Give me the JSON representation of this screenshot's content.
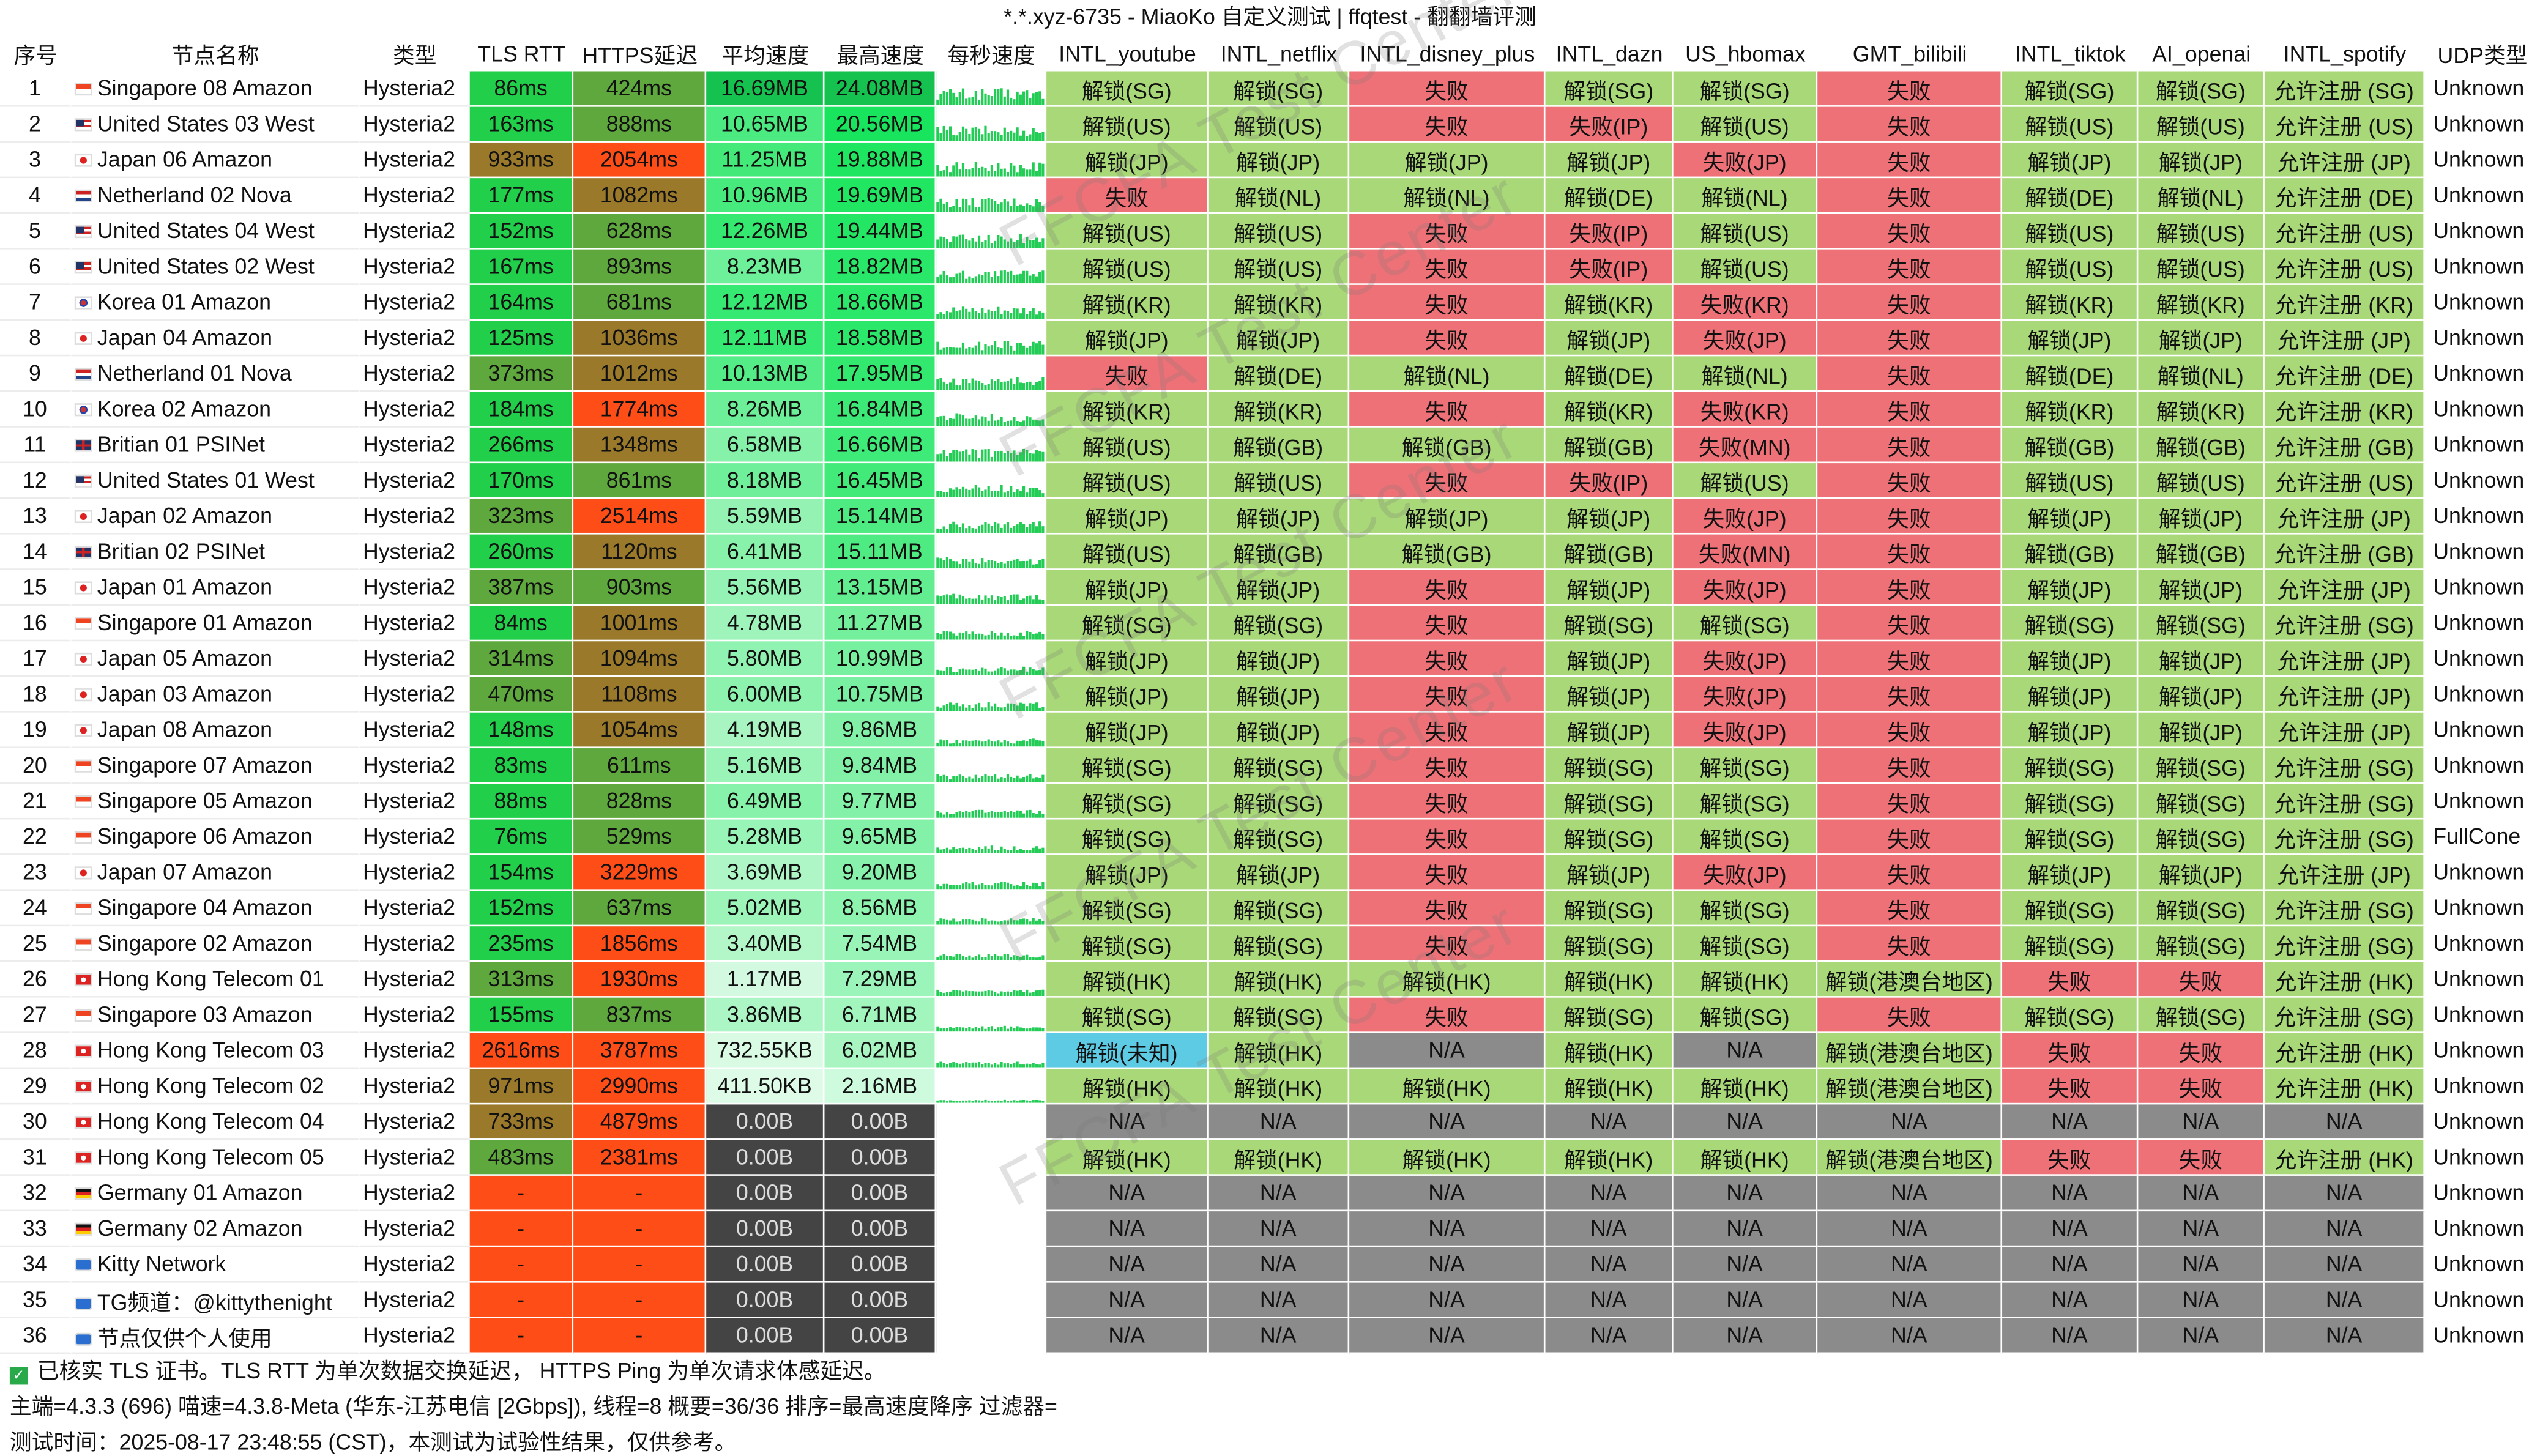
{
  "window": {
    "title": "*.*.xyz-6735 - MiaoKo 自定义测试 | ffqtest - 翻翻墙评测",
    "watermark": "FFCFA Test Center"
  },
  "colors": {
    "unlock": "#a8d878",
    "fail": "#ee7178",
    "na": "#8b8b8b",
    "unknown_region": "#5ecbe5",
    "rtt_good": "#22cf4b",
    "rtt_mid": "#5fa83e",
    "rtt_warn": "#9a7a2a",
    "rtt_bad": "#ff4d18",
    "speed_hi": "#10d060",
    "speed_zero": "#444444"
  },
  "columns": [
    "序号",
    "节点名称",
    "类型",
    "TLS RTT",
    "HTTPS延迟",
    "平均速度",
    "最高速度",
    "每秒速度",
    "INTL_youtube",
    "INTL_netflix",
    "INTL_disney_plus",
    "INTL_dazn",
    "US_hbomax",
    "GMT_bilibili",
    "INTL_tiktok",
    "AI_openai",
    "INTL_spotify",
    "UDP类型"
  ],
  "rows": [
    {
      "idx": "1",
      "flag": "SG",
      "name": "Singapore 08 Amazon",
      "type": "Hysteria2",
      "tls": "86ms",
      "https": "424ms",
      "avg": "16.69MB",
      "max": "24.08MB",
      "yt": "解锁(SG)",
      "nf": "解锁(SG)",
      "dp": "失败",
      "dazn": "解锁(SG)",
      "hbo": "解锁(SG)",
      "bili": "失败",
      "tt": "解锁(SG)",
      "ai": "解锁(SG)",
      "sp": "允许注册 (SG)",
      "udp": "Unknown"
    },
    {
      "idx": "2",
      "flag": "US",
      "name": "United States 03 West",
      "type": "Hysteria2",
      "tls": "163ms",
      "https": "888ms",
      "avg": "10.65MB",
      "max": "20.56MB",
      "yt": "解锁(US)",
      "nf": "解锁(US)",
      "dp": "失败",
      "dazn": "失败(IP)",
      "hbo": "解锁(US)",
      "bili": "失败",
      "tt": "解锁(US)",
      "ai": "解锁(US)",
      "sp": "允许注册 (US)",
      "udp": "Unknown"
    },
    {
      "idx": "3",
      "flag": "JP",
      "name": "Japan 06 Amazon",
      "type": "Hysteria2",
      "tls": "933ms",
      "https": "2054ms",
      "avg": "11.25MB",
      "max": "19.88MB",
      "yt": "解锁(JP)",
      "nf": "解锁(JP)",
      "dp": "解锁(JP)",
      "dazn": "解锁(JP)",
      "hbo": "失败(JP)",
      "bili": "失败",
      "tt": "解锁(JP)",
      "ai": "解锁(JP)",
      "sp": "允许注册 (JP)",
      "udp": "Unknown"
    },
    {
      "idx": "4",
      "flag": "NL",
      "name": "Netherland 02 Nova",
      "type": "Hysteria2",
      "tls": "177ms",
      "https": "1082ms",
      "avg": "10.96MB",
      "max": "19.69MB",
      "yt": "失败",
      "nf": "解锁(NL)",
      "dp": "解锁(NL)",
      "dazn": "解锁(DE)",
      "hbo": "解锁(NL)",
      "bili": "失败",
      "tt": "解锁(DE)",
      "ai": "解锁(NL)",
      "sp": "允许注册 (DE)",
      "udp": "Unknown"
    },
    {
      "idx": "5",
      "flag": "US",
      "name": "United States 04 West",
      "type": "Hysteria2",
      "tls": "152ms",
      "https": "628ms",
      "avg": "12.26MB",
      "max": "19.44MB",
      "yt": "解锁(US)",
      "nf": "解锁(US)",
      "dp": "失败",
      "dazn": "失败(IP)",
      "hbo": "解锁(US)",
      "bili": "失败",
      "tt": "解锁(US)",
      "ai": "解锁(US)",
      "sp": "允许注册 (US)",
      "udp": "Unknown"
    },
    {
      "idx": "6",
      "flag": "US",
      "name": "United States 02 West",
      "type": "Hysteria2",
      "tls": "167ms",
      "https": "893ms",
      "avg": "8.23MB",
      "max": "18.82MB",
      "yt": "解锁(US)",
      "nf": "解锁(US)",
      "dp": "失败",
      "dazn": "失败(IP)",
      "hbo": "解锁(US)",
      "bili": "失败",
      "tt": "解锁(US)",
      "ai": "解锁(US)",
      "sp": "允许注册 (US)",
      "udp": "Unknown"
    },
    {
      "idx": "7",
      "flag": "KR",
      "name": "Korea 01 Amazon",
      "type": "Hysteria2",
      "tls": "164ms",
      "https": "681ms",
      "avg": "12.12MB",
      "max": "18.66MB",
      "yt": "解锁(KR)",
      "nf": "解锁(KR)",
      "dp": "失败",
      "dazn": "解锁(KR)",
      "hbo": "失败(KR)",
      "bili": "失败",
      "tt": "解锁(KR)",
      "ai": "解锁(KR)",
      "sp": "允许注册 (KR)",
      "udp": "Unknown"
    },
    {
      "idx": "8",
      "flag": "JP",
      "name": "Japan 04 Amazon",
      "type": "Hysteria2",
      "tls": "125ms",
      "https": "1036ms",
      "avg": "12.11MB",
      "max": "18.58MB",
      "yt": "解锁(JP)",
      "nf": "解锁(JP)",
      "dp": "失败",
      "dazn": "解锁(JP)",
      "hbo": "失败(JP)",
      "bili": "失败",
      "tt": "解锁(JP)",
      "ai": "解锁(JP)",
      "sp": "允许注册 (JP)",
      "udp": "Unknown"
    },
    {
      "idx": "9",
      "flag": "NL",
      "name": "Netherland 01 Nova",
      "type": "Hysteria2",
      "tls": "373ms",
      "https": "1012ms",
      "avg": "10.13MB",
      "max": "17.95MB",
      "yt": "失败",
      "nf": "解锁(DE)",
      "dp": "解锁(NL)",
      "dazn": "解锁(DE)",
      "hbo": "解锁(NL)",
      "bili": "失败",
      "tt": "解锁(DE)",
      "ai": "解锁(NL)",
      "sp": "允许注册 (DE)",
      "udp": "Unknown"
    },
    {
      "idx": "10",
      "flag": "KR",
      "name": "Korea 02 Amazon",
      "type": "Hysteria2",
      "tls": "184ms",
      "https": "1774ms",
      "avg": "8.26MB",
      "max": "16.84MB",
      "yt": "解锁(KR)",
      "nf": "解锁(KR)",
      "dp": "失败",
      "dazn": "解锁(KR)",
      "hbo": "失败(KR)",
      "bili": "失败",
      "tt": "解锁(KR)",
      "ai": "解锁(KR)",
      "sp": "允许注册 (KR)",
      "udp": "Unknown"
    },
    {
      "idx": "11",
      "flag": "GB",
      "name": "Britian 01 PSINet",
      "type": "Hysteria2",
      "tls": "266ms",
      "https": "1348ms",
      "avg": "6.58MB",
      "max": "16.66MB",
      "yt": "解锁(US)",
      "nf": "解锁(GB)",
      "dp": "解锁(GB)",
      "dazn": "解锁(GB)",
      "hbo": "失败(MN)",
      "bili": "失败",
      "tt": "解锁(GB)",
      "ai": "解锁(GB)",
      "sp": "允许注册 (GB)",
      "udp": "Unknown"
    },
    {
      "idx": "12",
      "flag": "US",
      "name": "United States 01 West",
      "type": "Hysteria2",
      "tls": "170ms",
      "https": "861ms",
      "avg": "8.18MB",
      "max": "16.45MB",
      "yt": "解锁(US)",
      "nf": "解锁(US)",
      "dp": "失败",
      "dazn": "失败(IP)",
      "hbo": "解锁(US)",
      "bili": "失败",
      "tt": "解锁(US)",
      "ai": "解锁(US)",
      "sp": "允许注册 (US)",
      "udp": "Unknown"
    },
    {
      "idx": "13",
      "flag": "JP",
      "name": "Japan 02 Amazon",
      "type": "Hysteria2",
      "tls": "323ms",
      "https": "2514ms",
      "avg": "5.59MB",
      "max": "15.14MB",
      "yt": "解锁(JP)",
      "nf": "解锁(JP)",
      "dp": "解锁(JP)",
      "dazn": "解锁(JP)",
      "hbo": "失败(JP)",
      "bili": "失败",
      "tt": "解锁(JP)",
      "ai": "解锁(JP)",
      "sp": "允许注册 (JP)",
      "udp": "Unknown"
    },
    {
      "idx": "14",
      "flag": "GB",
      "name": "Britian 02 PSINet",
      "type": "Hysteria2",
      "tls": "260ms",
      "https": "1120ms",
      "avg": "6.41MB",
      "max": "15.11MB",
      "yt": "解锁(US)",
      "nf": "解锁(GB)",
      "dp": "解锁(GB)",
      "dazn": "解锁(GB)",
      "hbo": "失败(MN)",
      "bili": "失败",
      "tt": "解锁(GB)",
      "ai": "解锁(GB)",
      "sp": "允许注册 (GB)",
      "udp": "Unknown"
    },
    {
      "idx": "15",
      "flag": "JP",
      "name": "Japan 01 Amazon",
      "type": "Hysteria2",
      "tls": "387ms",
      "https": "903ms",
      "avg": "5.56MB",
      "max": "13.15MB",
      "yt": "解锁(JP)",
      "nf": "解锁(JP)",
      "dp": "失败",
      "dazn": "解锁(JP)",
      "hbo": "失败(JP)",
      "bili": "失败",
      "tt": "解锁(JP)",
      "ai": "解锁(JP)",
      "sp": "允许注册 (JP)",
      "udp": "Unknown"
    },
    {
      "idx": "16",
      "flag": "SG",
      "name": "Singapore 01 Amazon",
      "type": "Hysteria2",
      "tls": "84ms",
      "https": "1001ms",
      "avg": "4.78MB",
      "max": "11.27MB",
      "yt": "解锁(SG)",
      "nf": "解锁(SG)",
      "dp": "失败",
      "dazn": "解锁(SG)",
      "hbo": "解锁(SG)",
      "bili": "失败",
      "tt": "解锁(SG)",
      "ai": "解锁(SG)",
      "sp": "允许注册 (SG)",
      "udp": "Unknown"
    },
    {
      "idx": "17",
      "flag": "JP",
      "name": "Japan 05 Amazon",
      "type": "Hysteria2",
      "tls": "314ms",
      "https": "1094ms",
      "avg": "5.80MB",
      "max": "10.99MB",
      "yt": "解锁(JP)",
      "nf": "解锁(JP)",
      "dp": "失败",
      "dazn": "解锁(JP)",
      "hbo": "失败(JP)",
      "bili": "失败",
      "tt": "解锁(JP)",
      "ai": "解锁(JP)",
      "sp": "允许注册 (JP)",
      "udp": "Unknown"
    },
    {
      "idx": "18",
      "flag": "JP",
      "name": "Japan 03 Amazon",
      "type": "Hysteria2",
      "tls": "470ms",
      "https": "1108ms",
      "avg": "6.00MB",
      "max": "10.75MB",
      "yt": "解锁(JP)",
      "nf": "解锁(JP)",
      "dp": "失败",
      "dazn": "解锁(JP)",
      "hbo": "失败(JP)",
      "bili": "失败",
      "tt": "解锁(JP)",
      "ai": "解锁(JP)",
      "sp": "允许注册 (JP)",
      "udp": "Unknown"
    },
    {
      "idx": "19",
      "flag": "JP",
      "name": "Japan 08 Amazon",
      "type": "Hysteria2",
      "tls": "148ms",
      "https": "1054ms",
      "avg": "4.19MB",
      "max": "9.86MB",
      "yt": "解锁(JP)",
      "nf": "解锁(JP)",
      "dp": "失败",
      "dazn": "解锁(JP)",
      "hbo": "失败(JP)",
      "bili": "失败",
      "tt": "解锁(JP)",
      "ai": "解锁(JP)",
      "sp": "允许注册 (JP)",
      "udp": "Unknown"
    },
    {
      "idx": "20",
      "flag": "SG",
      "name": "Singapore 07 Amazon",
      "type": "Hysteria2",
      "tls": "83ms",
      "https": "611ms",
      "avg": "5.16MB",
      "max": "9.84MB",
      "yt": "解锁(SG)",
      "nf": "解锁(SG)",
      "dp": "失败",
      "dazn": "解锁(SG)",
      "hbo": "解锁(SG)",
      "bili": "失败",
      "tt": "解锁(SG)",
      "ai": "解锁(SG)",
      "sp": "允许注册 (SG)",
      "udp": "Unknown"
    },
    {
      "idx": "21",
      "flag": "SG",
      "name": "Singapore 05 Amazon",
      "type": "Hysteria2",
      "tls": "88ms",
      "https": "828ms",
      "avg": "6.49MB",
      "max": "9.77MB",
      "yt": "解锁(SG)",
      "nf": "解锁(SG)",
      "dp": "失败",
      "dazn": "解锁(SG)",
      "hbo": "解锁(SG)",
      "bili": "失败",
      "tt": "解锁(SG)",
      "ai": "解锁(SG)",
      "sp": "允许注册 (SG)",
      "udp": "Unknown"
    },
    {
      "idx": "22",
      "flag": "SG",
      "name": "Singapore 06 Amazon",
      "type": "Hysteria2",
      "tls": "76ms",
      "https": "529ms",
      "avg": "5.28MB",
      "max": "9.65MB",
      "yt": "解锁(SG)",
      "nf": "解锁(SG)",
      "dp": "失败",
      "dazn": "解锁(SG)",
      "hbo": "解锁(SG)",
      "bili": "失败",
      "tt": "解锁(SG)",
      "ai": "解锁(SG)",
      "sp": "允许注册 (SG)",
      "udp": "FullCone"
    },
    {
      "idx": "23",
      "flag": "JP",
      "name": "Japan 07 Amazon",
      "type": "Hysteria2",
      "tls": "154ms",
      "https": "3229ms",
      "avg": "3.69MB",
      "max": "9.20MB",
      "yt": "解锁(JP)",
      "nf": "解锁(JP)",
      "dp": "失败",
      "dazn": "解锁(JP)",
      "hbo": "失败(JP)",
      "bili": "失败",
      "tt": "解锁(JP)",
      "ai": "解锁(JP)",
      "sp": "允许注册 (JP)",
      "udp": "Unknown"
    },
    {
      "idx": "24",
      "flag": "SG",
      "name": "Singapore 04 Amazon",
      "type": "Hysteria2",
      "tls": "152ms",
      "https": "637ms",
      "avg": "5.02MB",
      "max": "8.56MB",
      "yt": "解锁(SG)",
      "nf": "解锁(SG)",
      "dp": "失败",
      "dazn": "解锁(SG)",
      "hbo": "解锁(SG)",
      "bili": "失败",
      "tt": "解锁(SG)",
      "ai": "解锁(SG)",
      "sp": "允许注册 (SG)",
      "udp": "Unknown"
    },
    {
      "idx": "25",
      "flag": "SG",
      "name": "Singapore 02 Amazon",
      "type": "Hysteria2",
      "tls": "235ms",
      "https": "1856ms",
      "avg": "3.40MB",
      "max": "7.54MB",
      "yt": "解锁(SG)",
      "nf": "解锁(SG)",
      "dp": "失败",
      "dazn": "解锁(SG)",
      "hbo": "解锁(SG)",
      "bili": "失败",
      "tt": "解锁(SG)",
      "ai": "解锁(SG)",
      "sp": "允许注册 (SG)",
      "udp": "Unknown"
    },
    {
      "idx": "26",
      "flag": "HK",
      "name": "Hong Kong Telecom 01",
      "type": "Hysteria2",
      "tls": "313ms",
      "https": "1930ms",
      "avg": "1.17MB",
      "max": "7.29MB",
      "yt": "解锁(HK)",
      "nf": "解锁(HK)",
      "dp": "解锁(HK)",
      "dazn": "解锁(HK)",
      "hbo": "解锁(HK)",
      "bili": "解锁(港澳台地区)",
      "tt": "失败",
      "ai": "失败",
      "sp": "允许注册 (HK)",
      "udp": "Unknown"
    },
    {
      "idx": "27",
      "flag": "SG",
      "name": "Singapore 03 Amazon",
      "type": "Hysteria2",
      "tls": "155ms",
      "https": "837ms",
      "avg": "3.86MB",
      "max": "6.71MB",
      "yt": "解锁(SG)",
      "nf": "解锁(SG)",
      "dp": "失败",
      "dazn": "解锁(SG)",
      "hbo": "解锁(SG)",
      "bili": "失败",
      "tt": "解锁(SG)",
      "ai": "解锁(SG)",
      "sp": "允许注册 (SG)",
      "udp": "Unknown"
    },
    {
      "idx": "28",
      "flag": "HK",
      "name": "Hong Kong Telecom 03",
      "type": "Hysteria2",
      "tls": "2616ms",
      "https": "3787ms",
      "avg": "732.55KB",
      "max": "6.02MB",
      "yt": "解锁(未知)",
      "nf": "解锁(HK)",
      "dp": "N/A",
      "dazn": "解锁(HK)",
      "hbo": "N/A",
      "bili": "解锁(港澳台地区)",
      "tt": "失败",
      "ai": "失败",
      "sp": "允许注册 (HK)",
      "udp": "Unknown"
    },
    {
      "idx": "29",
      "flag": "HK",
      "name": "Hong Kong Telecom 02",
      "type": "Hysteria2",
      "tls": "971ms",
      "https": "2990ms",
      "avg": "411.50KB",
      "max": "2.16MB",
      "yt": "解锁(HK)",
      "nf": "解锁(HK)",
      "dp": "解锁(HK)",
      "dazn": "解锁(HK)",
      "hbo": "解锁(HK)",
      "bili": "解锁(港澳台地区)",
      "tt": "失败",
      "ai": "失败",
      "sp": "允许注册 (HK)",
      "udp": "Unknown"
    },
    {
      "idx": "30",
      "flag": "HK",
      "name": "Hong Kong Telecom 04",
      "type": "Hysteria2",
      "tls": "733ms",
      "https": "4879ms",
      "avg": "0.00B",
      "max": "0.00B",
      "yt": "N/A",
      "nf": "N/A",
      "dp": "N/A",
      "dazn": "N/A",
      "hbo": "N/A",
      "bili": "N/A",
      "tt": "N/A",
      "ai": "N/A",
      "sp": "N/A",
      "udp": "Unknown"
    },
    {
      "idx": "31",
      "flag": "HK",
      "name": "Hong Kong Telecom 05",
      "type": "Hysteria2",
      "tls": "483ms",
      "https": "2381ms",
      "avg": "0.00B",
      "max": "0.00B",
      "yt": "解锁(HK)",
      "nf": "解锁(HK)",
      "dp": "解锁(HK)",
      "dazn": "解锁(HK)",
      "hbo": "解锁(HK)",
      "bili": "解锁(港澳台地区)",
      "tt": "失败",
      "ai": "失败",
      "sp": "允许注册 (HK)",
      "udp": "Unknown"
    },
    {
      "idx": "32",
      "flag": "DE",
      "name": "Germany 01 Amazon",
      "type": "Hysteria2",
      "tls": "-",
      "https": "-",
      "avg": "0.00B",
      "max": "0.00B",
      "yt": "N/A",
      "nf": "N/A",
      "dp": "N/A",
      "dazn": "N/A",
      "hbo": "N/A",
      "bili": "N/A",
      "tt": "N/A",
      "ai": "N/A",
      "sp": "N/A",
      "udp": "Unknown"
    },
    {
      "idx": "33",
      "flag": "DE",
      "name": "Germany 02 Amazon",
      "type": "Hysteria2",
      "tls": "-",
      "https": "-",
      "avg": "0.00B",
      "max": "0.00B",
      "yt": "N/A",
      "nf": "N/A",
      "dp": "N/A",
      "dazn": "N/A",
      "hbo": "N/A",
      "bili": "N/A",
      "tt": "N/A",
      "ai": "N/A",
      "sp": "N/A",
      "udp": "Unknown"
    },
    {
      "idx": "34",
      "flag": "ICON",
      "name": "Kitty Network",
      "type": "Hysteria2",
      "tls": "-",
      "https": "-",
      "avg": "0.00B",
      "max": "0.00B",
      "yt": "N/A",
      "nf": "N/A",
      "dp": "N/A",
      "dazn": "N/A",
      "hbo": "N/A",
      "bili": "N/A",
      "tt": "N/A",
      "ai": "N/A",
      "sp": "N/A",
      "udp": "Unknown"
    },
    {
      "idx": "35",
      "flag": "ICON",
      "name": "TG频道：@kittythenight",
      "type": "Hysteria2",
      "tls": "-",
      "https": "-",
      "avg": "0.00B",
      "max": "0.00B",
      "yt": "N/A",
      "nf": "N/A",
      "dp": "N/A",
      "dazn": "N/A",
      "hbo": "N/A",
      "bili": "N/A",
      "tt": "N/A",
      "ai": "N/A",
      "sp": "N/A",
      "udp": "Unknown"
    },
    {
      "idx": "36",
      "flag": "ICON",
      "name": "节点仅供个人使用",
      "type": "Hysteria2",
      "tls": "-",
      "https": "-",
      "avg": "0.00B",
      "max": "0.00B",
      "yt": "N/A",
      "nf": "N/A",
      "dp": "N/A",
      "dazn": "N/A",
      "hbo": "N/A",
      "bili": "N/A",
      "tt": "N/A",
      "ai": "N/A",
      "sp": "N/A",
      "udp": "Unknown"
    }
  ],
  "footer": {
    "line1": "已核实 TLS 证书。TLS RTT 为单次数据交换延迟， HTTPS Ping 为单次请求体感延迟。",
    "line2": "主端=4.3.3 (696) 喵速=4.3.8-Meta (华东-江苏电信 [2Gbps]), 线程=8 概要=36/36 排序=最高速度降序 过滤器=",
    "line3": "测试时间：2025-08-17 23:48:55 (CST)，本测试为试验性结果，仅供参考。"
  }
}
